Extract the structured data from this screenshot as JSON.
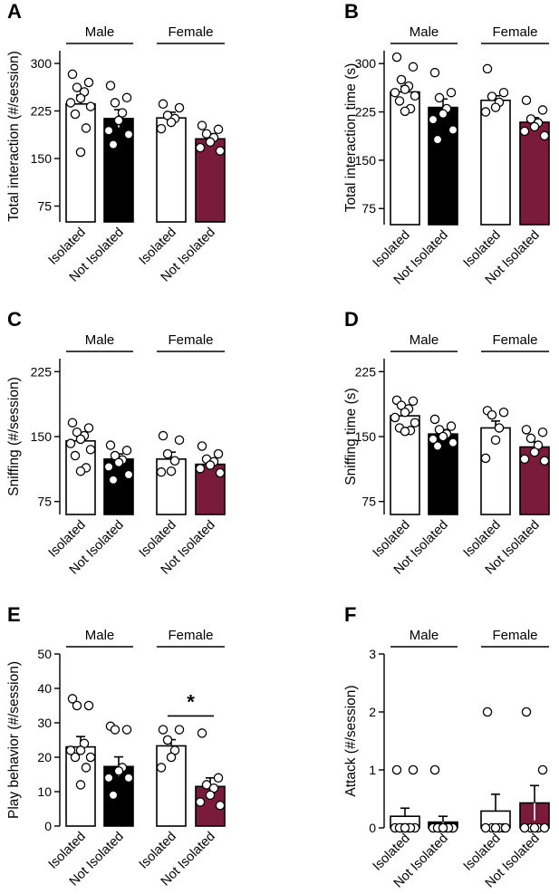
{
  "colors": {
    "isolated": "#ffffff",
    "not_isolated": "#000000",
    "female_not_isolated": "#7b1b3c",
    "ink": "#000000"
  },
  "chart_data": [
    {
      "panel": "A",
      "type": "bar",
      "ylabel": "Total interaction (#/session)",
      "ylim": [
        50,
        320
      ],
      "yticks": [
        75,
        150,
        225,
        300
      ],
      "groups": [
        "Male",
        "Female"
      ],
      "categories": [
        "Isolated",
        "Not Isolated",
        "Isolated",
        "Not Isolated"
      ],
      "values": [
        236,
        213,
        214,
        181
      ],
      "errors": [
        14,
        14,
        9,
        8
      ],
      "points": [
        [
          283,
          270,
          262,
          255,
          245,
          238,
          232,
          220,
          198,
          160
        ],
        [
          265,
          246,
          238,
          222,
          210,
          194,
          188,
          172
        ],
        [
          236,
          230,
          218,
          213,
          207,
          197
        ],
        [
          202,
          196,
          189,
          183,
          176,
          167,
          162
        ]
      ],
      "significance": null
    },
    {
      "panel": "B",
      "type": "bar",
      "ylabel": "Total interaction time (s)",
      "ylim": [
        50,
        320
      ],
      "yticks": [
        75,
        150,
        225,
        300
      ],
      "groups": [
        "Male",
        "Female"
      ],
      "categories": [
        "Isolated",
        "Not Isolated",
        "Isolated",
        "Not Isolated"
      ],
      "values": [
        256,
        232,
        243,
        209
      ],
      "errors": [
        9,
        13,
        7,
        7
      ],
      "points": [
        [
          310,
          295,
          275,
          265,
          260,
          255,
          250,
          242,
          230,
          226
        ],
        [
          286,
          255,
          247,
          230,
          222,
          213,
          197,
          182
        ],
        [
          292,
          255,
          249,
          240,
          232,
          225
        ],
        [
          243,
          228,
          214,
          208,
          202,
          195,
          188
        ]
      ],
      "significance": null
    },
    {
      "panel": "C",
      "type": "bar",
      "ylabel": "Sniffing (#/session)",
      "ylim": [
        60,
        240
      ],
      "yticks": [
        75,
        150,
        225
      ],
      "groups": [
        "Male",
        "Female"
      ],
      "categories": [
        "Isolated",
        "Not Isolated",
        "Isolated",
        "Not Isolated"
      ],
      "values": [
        145,
        124,
        124,
        118
      ],
      "errors": [
        6,
        6,
        8,
        5
      ],
      "points": [
        [
          166,
          160,
          155,
          151,
          147,
          142,
          135,
          128,
          114,
          110
        ],
        [
          140,
          134,
          128,
          123,
          120,
          115,
          106,
          100
        ],
        [
          151,
          146,
          130,
          122,
          110,
          109
        ],
        [
          139,
          130,
          124,
          121,
          117,
          113,
          108
        ]
      ],
      "significance": null
    },
    {
      "panel": "D",
      "type": "bar",
      "ylabel": "Sniffing time (s)",
      "ylim": [
        60,
        240
      ],
      "yticks": [
        75,
        150,
        225
      ],
      "groups": [
        "Male",
        "Female"
      ],
      "categories": [
        "Isolated",
        "Not Isolated",
        "Isolated",
        "Not Isolated"
      ],
      "values": [
        174,
        153,
        160,
        138
      ],
      "errors": [
        6,
        5,
        8,
        6
      ],
      "points": [
        [
          192,
          191,
          186,
          182,
          178,
          172,
          166,
          160,
          157,
          156
        ],
        [
          170,
          162,
          158,
          153,
          150,
          147,
          143,
          139
        ],
        [
          180,
          178,
          175,
          160,
          146,
          125
        ],
        [
          158,
          155,
          148,
          140,
          132,
          124,
          122
        ]
      ],
      "significance": null
    },
    {
      "panel": "E",
      "type": "bar",
      "ylabel": "Play behavior (#/session)",
      "ylim": [
        0,
        50
      ],
      "yticks": [
        0,
        10,
        20,
        30,
        40,
        50
      ],
      "groups": [
        "Male",
        "Female"
      ],
      "categories": [
        "Isolated",
        "Not Isolated",
        "Isolated",
        "Not Isolated"
      ],
      "values": [
        23,
        17.3,
        23.3,
        11.5
      ],
      "errors": [
        3,
        2.8,
        1.8,
        2.5
      ],
      "points": [
        [
          37,
          35,
          35,
          24,
          22,
          22,
          20,
          20,
          17,
          12
        ],
        [
          29,
          28,
          28,
          17,
          16,
          14,
          14,
          9
        ],
        [
          28,
          28,
          25,
          22,
          20,
          17
        ],
        [
          27,
          14,
          12,
          11,
          9,
          7,
          6
        ]
      ],
      "significance": "*"
    },
    {
      "panel": "F",
      "type": "bar",
      "ylabel": "Attack (#/session)",
      "ylim": [
        0,
        3
      ],
      "yticks": [
        0,
        1,
        2,
        3
      ],
      "groups": [
        "Male",
        "Female"
      ],
      "categories": [
        "Isolated",
        "Not Isolated",
        "Isolated",
        "Not Isolated"
      ],
      "values": [
        0.2,
        0.1,
        0.29,
        0.43
      ],
      "errors": [
        0.14,
        0.1,
        0.29,
        0.3
      ],
      "points": [
        [
          1,
          1,
          0,
          0,
          0,
          0,
          0,
          0,
          0,
          0
        ],
        [
          1,
          0,
          0,
          0,
          0,
          0,
          0,
          0,
          0,
          0
        ],
        [
          2,
          0,
          0,
          0,
          0,
          0,
          0
        ],
        [
          2,
          1,
          0,
          0,
          0,
          0,
          0
        ]
      ],
      "significance": null
    }
  ]
}
